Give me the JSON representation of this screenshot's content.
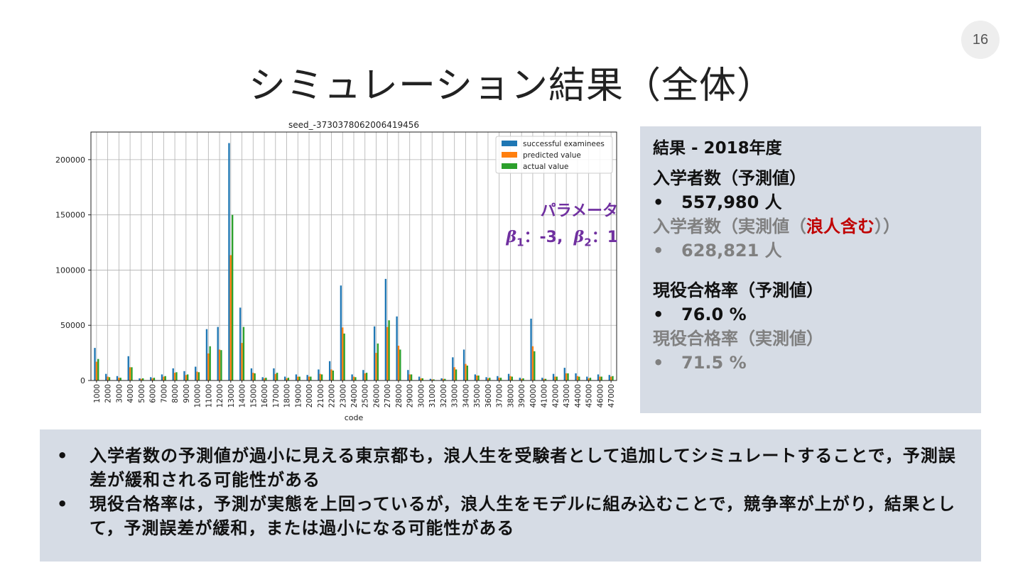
{
  "page_number": "16",
  "slide_title": "シミュレーション結果（全体）",
  "parameter_box": {
    "heading": "パラメータ",
    "beta1_symbol": "β",
    "beta1_sub": "1",
    "beta1_value": "：-3,",
    "beta2_symbol": "β",
    "beta2_sub": "2",
    "beta2_value": "：1"
  },
  "results_panel": {
    "heading": "結果 - 2018年度",
    "predicted_entrants_label": "入学者数（予測値）",
    "bullet": "•",
    "predicted_entrants_value": "557,980 人",
    "actual_entrants_label_prefix": "入学者数（実測値（",
    "actual_entrants_label_highlight": "浪人含む",
    "actual_entrants_label_suffix": "））",
    "actual_entrants_value": "628,821 人",
    "predicted_rate_label": "現役合格率（予測値）",
    "predicted_rate_value": "76.0 %",
    "actual_rate_label": "現役合格率（実測値）",
    "actual_rate_value": "71.5 %",
    "highlight_color": "#c00000",
    "muted_color": "#808080"
  },
  "summary_panel": {
    "bullet": "•",
    "items": [
      "入学者数の予測値が過小に見える東京都も，浪人生を受験者として追加してシミュレートすることで，予測誤差が緩和される可能性がある",
      "現役合格率は，予測が実態を上回っているが，浪人生をモデルに組み込むことで，競争率が上がり，結果として，予測誤差が緩和，または過小になる可能性がある"
    ]
  },
  "chart_data": {
    "type": "bar",
    "title": "seed_-3730378062006419456",
    "xlabel": "code",
    "ylabel": "",
    "ylim": [
      0,
      225000
    ],
    "yticks": [
      0,
      50000,
      100000,
      150000,
      200000
    ],
    "grid": true,
    "legend_position": "top-right",
    "categories": [
      "1000",
      "2000",
      "3000",
      "4000",
      "5000",
      "6000",
      "7000",
      "8000",
      "9000",
      "10000",
      "11000",
      "12000",
      "13000",
      "14000",
      "15000",
      "16000",
      "17000",
      "18000",
      "19000",
      "20000",
      "21000",
      "22000",
      "23000",
      "24000",
      "25000",
      "26000",
      "27000",
      "28000",
      "29000",
      "30000",
      "31000",
      "32000",
      "33000",
      "34000",
      "35000",
      "36000",
      "37000",
      "38000",
      "39000",
      "40000",
      "41000",
      "42000",
      "43000",
      "44000",
      "45000",
      "46000",
      "47000"
    ],
    "series": [
      {
        "name": "successful examinees",
        "color": "#1f77b4",
        "values": [
          29500,
          6000,
          4000,
          22000,
          2000,
          3000,
          5500,
          11000,
          8500,
          12500,
          46500,
          48500,
          215000,
          66000,
          11000,
          3000,
          11000,
          3500,
          5500,
          5000,
          10000,
          17500,
          86000,
          5500,
          9500,
          49000,
          92000,
          58000,
          9500,
          3500,
          1500,
          2000,
          21000,
          28000,
          5500,
          3000,
          4000,
          6000,
          2500,
          56000,
          2500,
          6000,
          11500,
          6500,
          3500,
          5500,
          5000
        ]
      },
      {
        "name": "predicted value",
        "color": "#ff7f0e",
        "values": [
          17000,
          3500,
          2500,
          12000,
          1500,
          2000,
          3500,
          7000,
          5000,
          8000,
          24500,
          28000,
          113500,
          34000,
          7000,
          2000,
          6000,
          2000,
          3500,
          3500,
          6000,
          10000,
          48000,
          3500,
          6500,
          25000,
          48500,
          31500,
          5500,
          2000,
          1000,
          1500,
          12000,
          15000,
          4500,
          2000,
          2500,
          4000,
          1500,
          31000,
          1500,
          3500,
          6500,
          4000,
          2000,
          3500,
          3500
        ]
      },
      {
        "name": "actual value",
        "color": "#2ca02c",
        "values": [
          19500,
          3000,
          2500,
          12000,
          2000,
          2500,
          4000,
          7500,
          5500,
          7500,
          31000,
          27500,
          150000,
          48500,
          6500,
          2500,
          7000,
          2500,
          3500,
          3500,
          5500,
          9000,
          42500,
          3000,
          7000,
          33500,
          54500,
          28000,
          5500,
          2000,
          1000,
          1500,
          10000,
          13500,
          4500,
          2500,
          2500,
          3500,
          2000,
          26500,
          1500,
          3500,
          6500,
          3500,
          2500,
          3500,
          4000
        ]
      }
    ]
  }
}
